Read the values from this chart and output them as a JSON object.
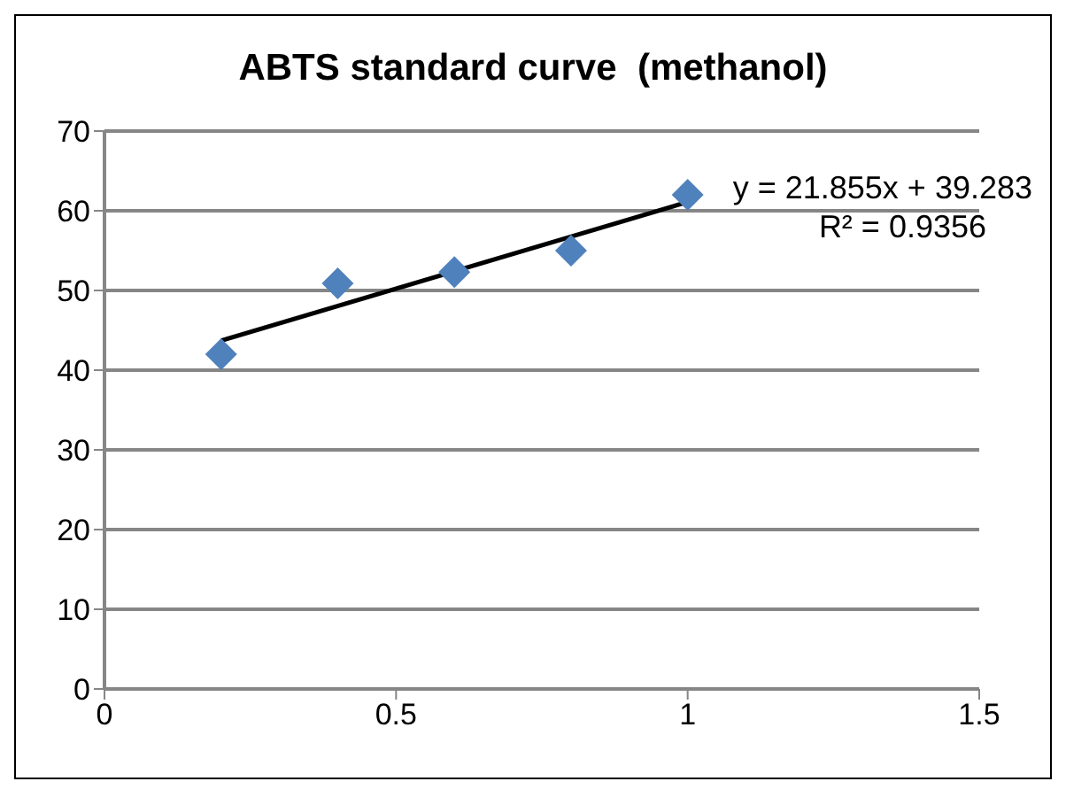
{
  "chart_data": {
    "type": "scatter",
    "title": "ABTS standard curve  (methanol)",
    "xlim": [
      0,
      1.5
    ],
    "xticks": [
      0,
      0.5,
      1,
      1.5
    ],
    "ylim": [
      0,
      70
    ],
    "yticks": [
      0,
      10,
      20,
      30,
      40,
      50,
      60,
      70
    ],
    "grid": "y",
    "marker": "diamond",
    "annotations": [
      "y = 21.855x + 39.283",
      "R² = 0.9356"
    ],
    "series": [
      {
        "color": "#4f81bd",
        "x": [
          0.2,
          0.4,
          0.6,
          0.8,
          1.0
        ],
        "values": [
          42.0,
          50.9,
          52.3,
          55.0,
          62.0
        ]
      },
      {
        "type": "line",
        "color": "#000000",
        "x": [
          0.2,
          1.0
        ],
        "values": [
          43.7,
          61.1
        ],
        "marker": "none"
      }
    ]
  }
}
